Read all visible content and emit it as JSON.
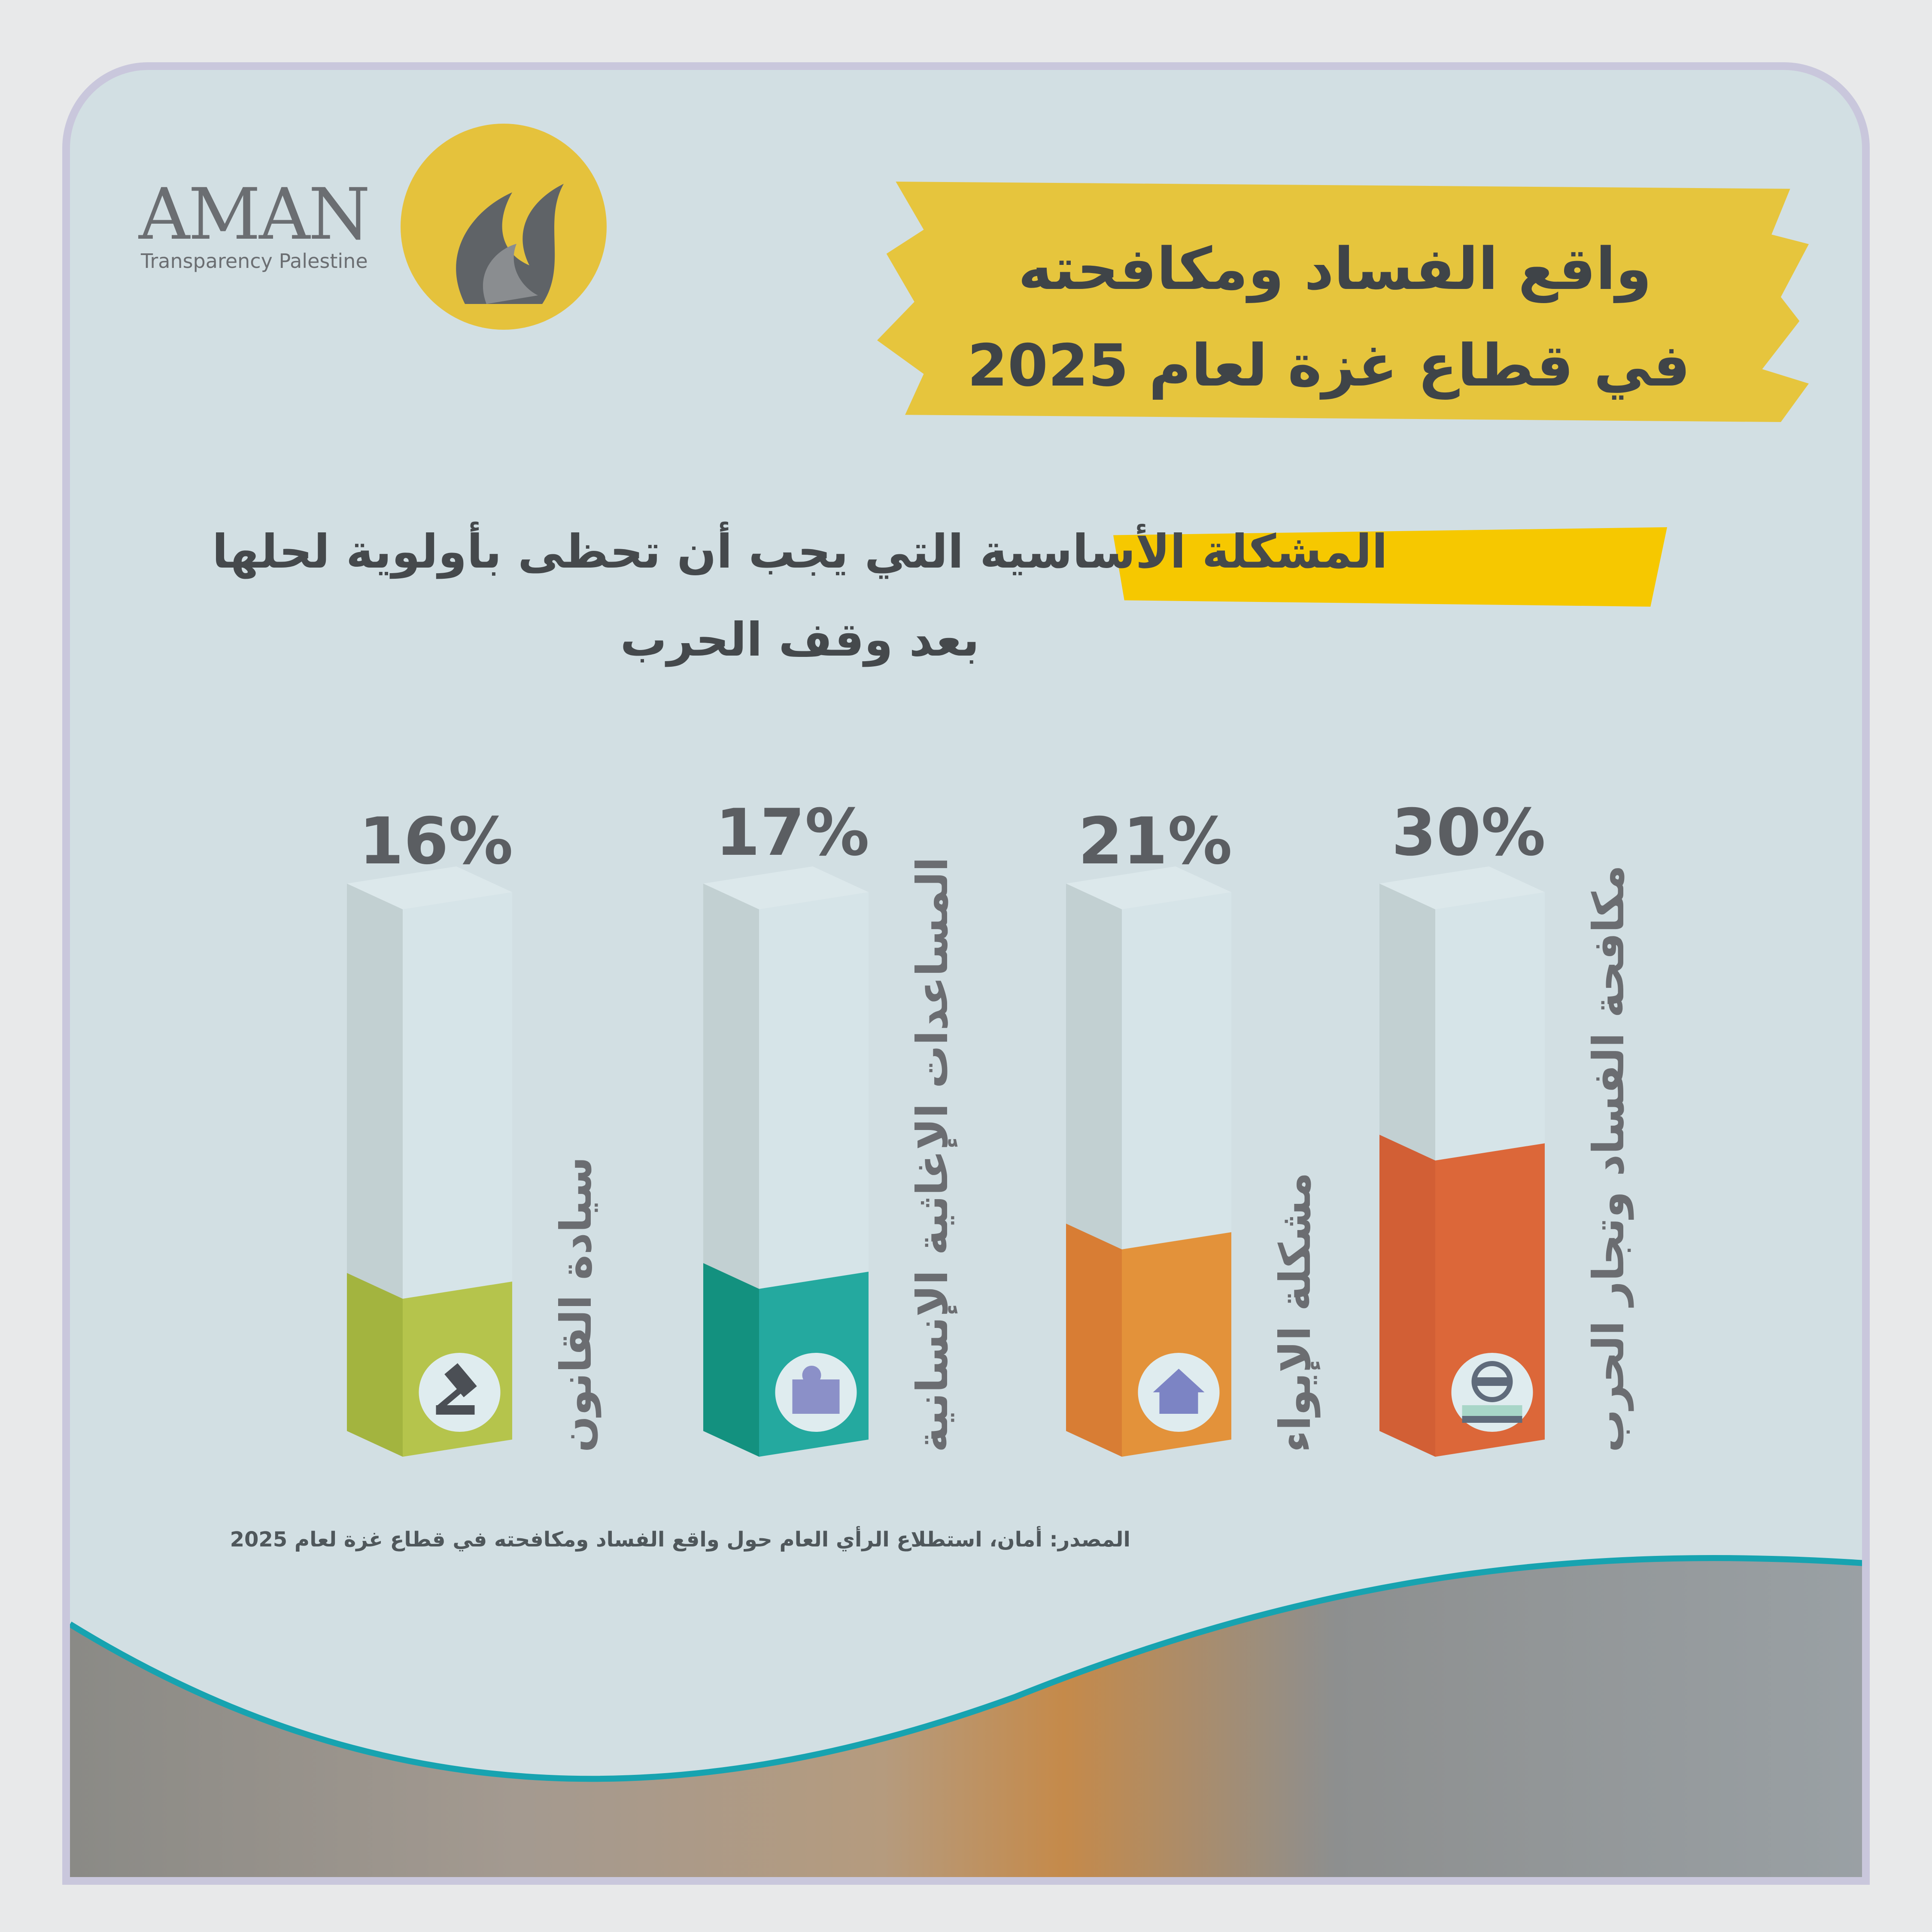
{
  "logo": {
    "name": "AMAN",
    "tagline": "Transparency Palestine",
    "arabic_mark": "أمان"
  },
  "title": {
    "line1": "واقع الفساد ومكافحته",
    "line2": "في قطاع غزة لعام 2025"
  },
  "subtitle": {
    "line1": "المشكلة الأساسية التي يجب أن تحظى بأولوية لحلها",
    "line2": "بعد وقف الحرب"
  },
  "source": "المصدر: أمان، استطلاع الرأي العام حول واقع الفساد ومكافحته في قطاع غزة لعام 2025",
  "colors": {
    "accent_yellow": "#e6c53d",
    "empty_bar": "#d6e4e8",
    "wave": "#17a3b0"
  },
  "chart_data": {
    "type": "bar",
    "unit": "%",
    "categories": [
      "سيادة القانون",
      "المساعدات الإغاثية الإنسانية",
      "مشكلة الإيواء",
      "مكافحة الفساد وتجار الحرب"
    ],
    "values": [
      16,
      17,
      21,
      30
    ],
    "labels": [
      "16%",
      "17%",
      "21%",
      "30%"
    ],
    "icons": [
      "gavel-icon",
      "aid-box-icon",
      "house-icon",
      "thief-icon"
    ],
    "bar_colors": [
      "#b5c44c",
      "#24a99f",
      "#e3923a",
      "#dc6739"
    ],
    "side_colors": [
      "#a3b43f",
      "#13917f",
      "#d87d34",
      "#d25f35"
    ],
    "ylim": [
      0,
      100
    ]
  }
}
